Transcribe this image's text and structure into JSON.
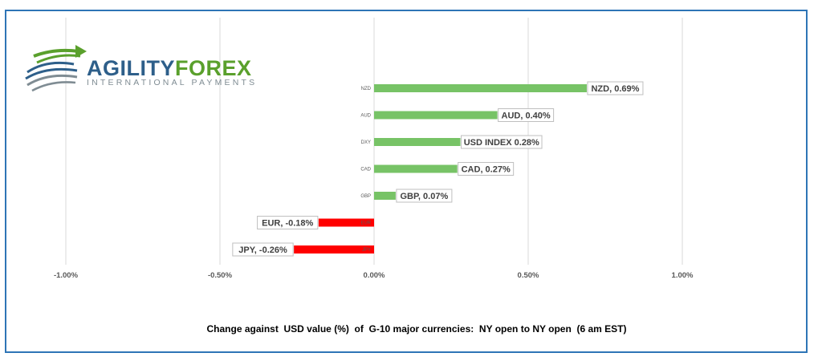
{
  "logo": {
    "name_part1": "AGILITY",
    "name_part2": "FOREX",
    "tagline": "INTERNATIONAL PAYMENTS",
    "colors": {
      "blue": "#2e5f8a",
      "green": "#5aa02c",
      "grey": "#7f8c93"
    }
  },
  "caption": "Change against  USD value (%)  of  G-10 major currencies:  NY open to NY open  (6 am EST)",
  "chart_data": {
    "type": "bar",
    "orientation": "horizontal",
    "categories": [
      "NZD",
      "AUD",
      "DXY",
      "CAD",
      "GBP",
      "EUR",
      "JPY"
    ],
    "values": [
      0.69,
      0.4,
      0.28,
      0.27,
      0.07,
      -0.18,
      -0.26
    ],
    "data_labels": [
      "NZD, 0.69%",
      "AUD, 0.40%",
      "USD INDEX 0.28%",
      "CAD, 0.27%",
      "GBP, 0.07%",
      "EUR, -0.18%",
      "JPY, -0.26%"
    ],
    "x_ticks": [
      -1.0,
      -0.5,
      0.0,
      0.5,
      1.0
    ],
    "x_tick_labels": [
      "-1.00%",
      "-0.50%",
      "0.00%",
      "0.50%",
      "1.00%"
    ],
    "xlim": [
      -1.0,
      1.0
    ],
    "grid": "vertical",
    "colors": {
      "positive": "#77c366",
      "negative": "#ff0000"
    },
    "title": "",
    "xlabel": "",
    "ylabel": ""
  }
}
